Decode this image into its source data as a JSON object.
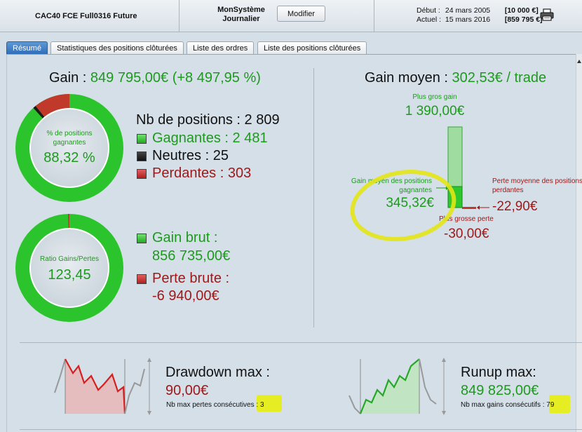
{
  "header": {
    "instrument": "CAC40 FCE Full0316 Future",
    "system_line1": "MonSystème",
    "system_line2": "Journalier",
    "modify_label": "Modifier",
    "start_label": "Début :",
    "start_date": "24 mars 2005",
    "start_amount": "[10 000 €]",
    "current_label": "Actuel :",
    "current_date": "15 mars 2016",
    "current_amount": "[859 795 €]",
    "print_icon": "printer-icon"
  },
  "tabs": [
    {
      "label": "Résumé",
      "active": true
    },
    {
      "label": "Statistiques des positions clôturées",
      "active": false
    },
    {
      "label": "Liste des ordres",
      "active": false
    },
    {
      "label": "Liste des positions clôturées",
      "active": false
    }
  ],
  "summary": {
    "gain_label": "Gain :",
    "gain_value": "849 795,00€ (+8 497,95 %)",
    "donut1": {
      "caption_line1": "% de positions",
      "caption_line2": "gagnantes",
      "value": "88,32 %",
      "win_fraction": 0.8832,
      "neutral_fraction": 0.0089,
      "loss_fraction": 0.1079
    },
    "positions_label": "Nb de positions : 2 809",
    "winners_label": "Gagnantes : 2 481",
    "neutral_label": "Neutres : 25",
    "losers_label": "Perdantes : 303",
    "donut2": {
      "caption": "Ratio Gains/Pertes",
      "value": "123,45",
      "gain_fraction": 0.992
    },
    "gross_gain_label": "Gain brut :",
    "gross_gain_value": "856 735,00€",
    "gross_loss_label": "Perte brute :",
    "gross_loss_value": "-6 940,00€"
  },
  "average": {
    "title_label": "Gain moyen :",
    "title_value": "302,53€ / trade",
    "biggest_gain_label": "Plus gros gain",
    "biggest_gain_value": "1 390,00€",
    "avg_win_line1": "Gain moyen des positions",
    "avg_win_line2": "gagnantes",
    "avg_win_value": "345,32€",
    "avg_loss_line1": "Perte moyenne des positions",
    "avg_loss_line2": "perdantes",
    "avg_loss_value": "-22,90€",
    "biggest_loss_label": "Plus grosse perte",
    "biggest_loss_value": "-30,00€"
  },
  "drawdown": {
    "title": "Drawdown max :",
    "value": "90,00€",
    "sub_label": "Nb max pertes consécutives :",
    "sub_value": "3"
  },
  "runup": {
    "title": "Runup max:",
    "value": "849 825,00€",
    "sub_label": "Nb max gains consécutifs :",
    "sub_value": "79"
  },
  "colors": {
    "green": "#1d9a1d",
    "red": "#a01818",
    "highlight": "#e3e614",
    "tab_active": "#3d7cc4"
  }
}
